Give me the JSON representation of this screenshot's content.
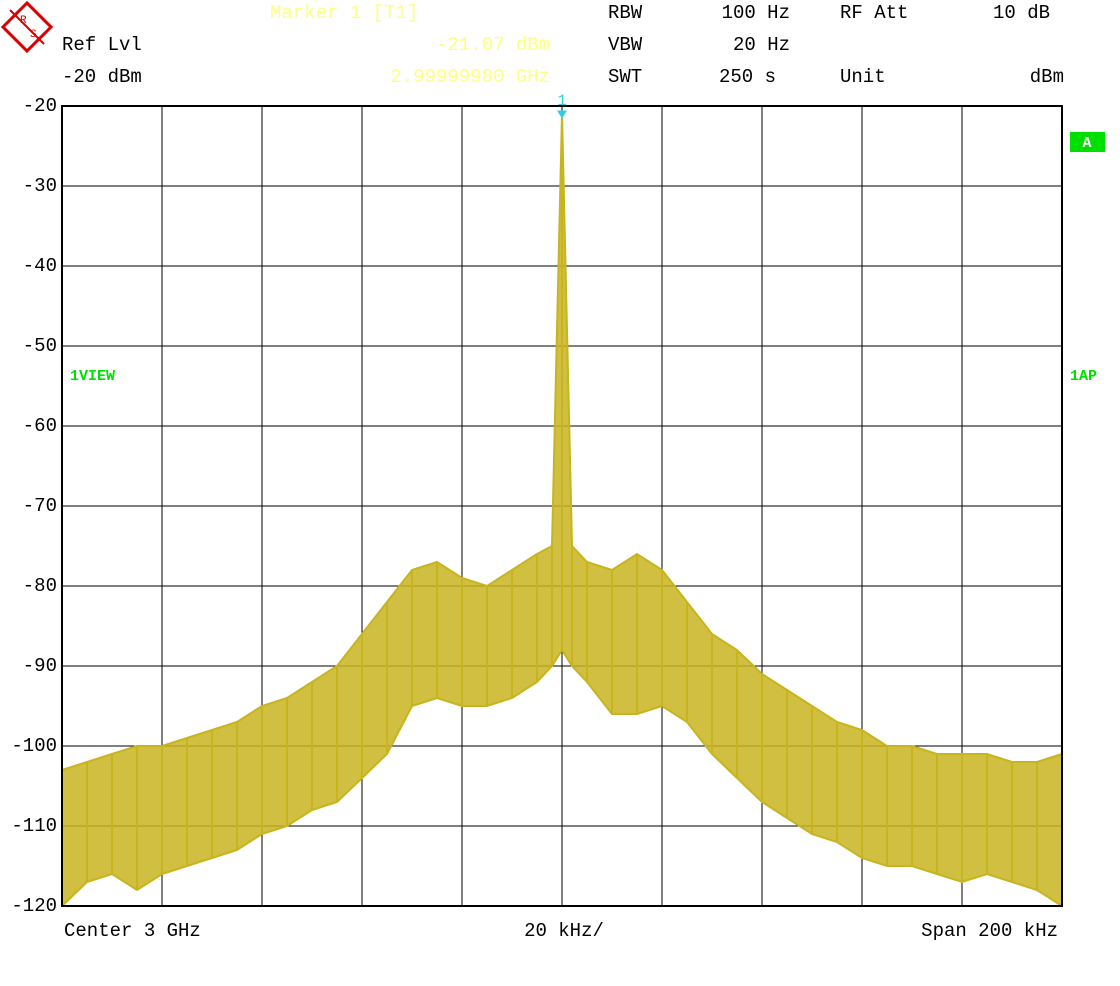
{
  "header": {
    "marker_title": "Marker 1 [T1]",
    "marker_level": "-21.07 dBm",
    "marker_freq": "2.99999980 GHz",
    "ref_lvl_label": "Ref Lvl",
    "ref_lvl": "-20 dBm",
    "rbw_label": "RBW",
    "rbw": "100 Hz",
    "vbw_label": "VBW",
    "vbw": "20 Hz",
    "swt_label": "SWT",
    "swt": "250 s",
    "rf_att_label": "RF Att",
    "rf_att": "10 dB",
    "unit_label": "Unit",
    "unit": "dBm"
  },
  "side": {
    "trace_mode": "1VIEW",
    "input": "A",
    "detector": "1AP"
  },
  "footer": {
    "center": "Center 3 GHz",
    "per_div": "20 kHz/",
    "span": "Span 200 kHz"
  },
  "chart_data": {
    "type": "envelope",
    "marker_label": "1",
    "marker_index": 21,
    "x": [
      -100,
      -95,
      -90,
      -85,
      -80,
      -75,
      -70,
      -65,
      -60,
      -55,
      -50,
      -45,
      -40,
      -35,
      -30,
      -25,
      -20,
      -15,
      -10,
      -5,
      -2,
      0,
      2,
      5,
      10,
      15,
      20,
      25,
      30,
      35,
      40,
      45,
      50,
      55,
      60,
      65,
      70,
      75,
      80,
      85,
      90,
      95,
      100
    ],
    "xlim": [
      -100,
      100
    ],
    "ylim": [
      -120,
      -20
    ],
    "yticks": [
      -20,
      -30,
      -40,
      -50,
      -60,
      -70,
      -80,
      -90,
      -100,
      -110,
      -120
    ],
    "grid": true,
    "series": [
      {
        "name": "max",
        "color": "#c8b41e",
        "values": [
          -103,
          -102,
          -101,
          -100,
          -100,
          -99,
          -98,
          -97,
          -95,
          -94,
          -92,
          -90,
          -86,
          -82,
          -78,
          -77,
          -79,
          -80,
          -78,
          -76,
          -75,
          -21.07,
          -75,
          -77,
          -78,
          -76,
          -78,
          -82,
          -86,
          -88,
          -91,
          -93,
          -95,
          -97,
          -98,
          -100,
          -100,
          -101,
          -101,
          -101,
          -102,
          -102,
          -101
        ]
      },
      {
        "name": "min",
        "color": "#c8b41e",
        "values": [
          -120,
          -117,
          -116,
          -118,
          -116,
          -115,
          -114,
          -113,
          -111,
          -110,
          -108,
          -107,
          -104,
          -101,
          -95,
          -94,
          -95,
          -95,
          -94,
          -92,
          -90,
          -88,
          -90,
          -92,
          -96,
          -96,
          -95,
          -97,
          -101,
          -104,
          -107,
          -109,
          -111,
          -112,
          -114,
          -115,
          -115,
          -116,
          -117,
          -116,
          -117,
          -118,
          -120
        ]
      }
    ]
  }
}
